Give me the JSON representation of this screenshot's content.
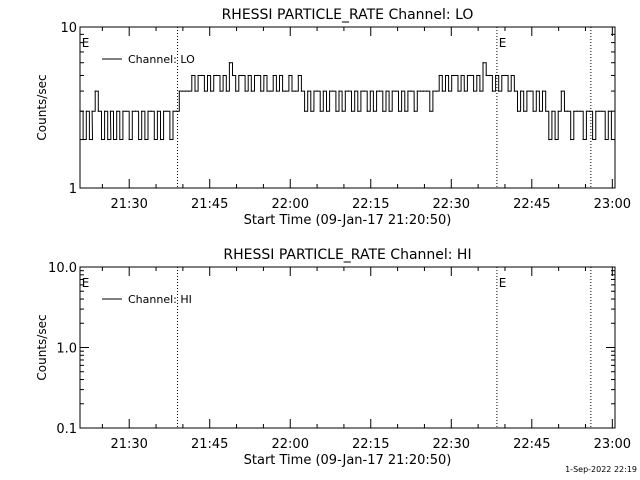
{
  "footer_date": "1-Sep-2022 22:19",
  "chart_data": [
    {
      "type": "line",
      "title": "RHESSI PARTICLE_RATE Channel: LO",
      "xlabel": "Start Time (09-Jan-17 21:20:50)",
      "ylabel": "Counts/sec",
      "yscale": "log",
      "ylim": [
        1,
        10
      ],
      "y_ticks": [
        1,
        10
      ],
      "y_tick_labels": [
        "1",
        "10"
      ],
      "xlim": [
        "21:20:50",
        "23:00:30"
      ],
      "x_ticks": [
        "21:30",
        "21:45",
        "22:00",
        "22:15",
        "22:30",
        "22:45",
        "23:00"
      ],
      "x_tick_labels": [
        "21:30",
        "21:45",
        "22:00",
        "22:15",
        "22:30",
        "22:45",
        "23:00"
      ],
      "legend": "Channel: LO",
      "legend_placement": "top-left",
      "event_lines": [
        "21:39:00",
        "22:38:30",
        "22:56:00"
      ],
      "event_markers": [
        {
          "time": "21:21:10",
          "label": "E"
        },
        {
          "time": "22:38:50",
          "label": "E"
        }
      ],
      "series": [
        {
          "name": "Channel: LO",
          "x": [
            "21:20:50",
            "21:21:25",
            "21:22:00",
            "21:22:35",
            "21:23:05",
            "21:23:40",
            "21:24:15",
            "21:24:50",
            "21:25:25",
            "21:26:00",
            "21:26:30",
            "21:27:05",
            "21:27:40",
            "21:28:15",
            "21:28:50",
            "21:29:25",
            "21:30:00",
            "21:30:35",
            "21:31:10",
            "21:31:45",
            "21:32:20",
            "21:32:55",
            "21:33:30",
            "21:34:05",
            "21:34:40",
            "21:35:15",
            "21:35:50",
            "21:36:25",
            "21:37:00",
            "21:37:35",
            "21:38:10",
            "21:38:45",
            "21:39:20",
            "21:39:55",
            "21:40:30",
            "21:41:05",
            "21:41:40",
            "21:42:15",
            "21:42:50",
            "21:43:25",
            "21:44:00",
            "21:44:35",
            "21:45:10",
            "21:45:45",
            "21:46:20",
            "21:46:55",
            "21:47:30",
            "21:48:05",
            "21:48:40",
            "21:49:15",
            "21:49:50",
            "21:50:25",
            "21:51:00",
            "21:51:35",
            "21:52:10",
            "21:52:45",
            "21:53:20",
            "21:53:55",
            "21:54:30",
            "21:55:05",
            "21:55:40",
            "21:56:15",
            "21:56:50",
            "21:57:25",
            "21:58:00",
            "21:58:35",
            "21:59:10",
            "21:59:45",
            "22:00:20",
            "22:00:55",
            "22:01:30",
            "22:02:05",
            "22:02:40",
            "22:03:15",
            "22:03:50",
            "22:04:25",
            "22:05:00",
            "22:05:35",
            "22:06:10",
            "22:06:45",
            "22:07:20",
            "22:07:55",
            "22:08:30",
            "22:09:05",
            "22:09:40",
            "22:10:15",
            "22:10:50",
            "22:11:25",
            "22:12:00",
            "22:12:35",
            "22:13:10",
            "22:13:45",
            "22:14:20",
            "22:14:55",
            "22:15:30",
            "22:16:05",
            "22:16:40",
            "22:17:15",
            "22:17:50",
            "22:18:25",
            "22:19:00",
            "22:19:35",
            "22:20:10",
            "22:20:45",
            "22:21:20",
            "22:21:55",
            "22:22:30",
            "22:23:05",
            "22:23:40",
            "22:24:15",
            "22:24:50",
            "22:25:25",
            "22:26:00",
            "22:26:35",
            "22:27:10",
            "22:27:45",
            "22:28:20",
            "22:28:55",
            "22:29:30",
            "22:30:05",
            "22:30:40",
            "22:31:15",
            "22:31:50",
            "22:32:25",
            "22:33:00",
            "22:33:35",
            "22:34:10",
            "22:34:45",
            "22:35:20",
            "22:35:55",
            "22:36:30",
            "22:37:05",
            "22:37:40",
            "22:38:15",
            "22:38:50",
            "22:39:25",
            "22:40:00",
            "22:40:35",
            "22:41:10",
            "22:41:45",
            "22:42:20",
            "22:42:55",
            "22:43:30",
            "22:44:05",
            "22:44:40",
            "22:45:15",
            "22:45:50",
            "22:46:25",
            "22:47:00",
            "22:47:35",
            "22:48:10",
            "22:48:45",
            "22:49:20",
            "22:49:55",
            "22:50:30",
            "22:51:05",
            "22:51:40",
            "22:52:15",
            "22:52:50",
            "22:53:25",
            "22:54:00",
            "22:54:35",
            "22:55:10",
            "22:55:45",
            "22:56:20",
            "22:56:55",
            "22:57:30",
            "22:58:05",
            "22:58:40",
            "22:59:15",
            "22:59:50"
          ],
          "y": [
            3,
            2,
            3,
            2,
            3,
            4,
            3,
            2,
            3,
            2,
            3,
            2,
            3,
            2,
            3,
            3,
            2,
            3,
            3,
            2,
            3,
            2,
            3,
            3,
            2,
            3,
            2,
            3,
            3,
            2,
            3,
            3,
            4,
            4,
            4,
            4,
            5,
            4,
            5,
            5,
            4,
            5,
            4,
            5,
            5,
            4,
            5,
            4,
            6,
            5,
            4,
            5,
            5,
            4,
            5,
            4,
            5,
            5,
            4,
            5,
            4,
            4,
            5,
            4,
            5,
            4,
            4,
            5,
            4,
            4,
            5,
            4,
            3,
            4,
            3,
            4,
            4,
            3,
            4,
            3,
            4,
            4,
            3,
            4,
            3,
            4,
            4,
            3,
            4,
            3,
            4,
            4,
            3,
            4,
            3,
            4,
            4,
            3,
            4,
            3,
            4,
            4,
            3,
            4,
            3,
            4,
            4,
            3,
            4,
            4,
            4,
            4,
            3,
            4,
            4,
            5,
            4,
            5,
            4,
            5,
            5,
            4,
            5,
            4,
            5,
            5,
            4,
            5,
            4,
            6,
            5,
            5,
            4,
            5,
            4,
            5,
            5,
            4,
            5,
            4,
            3,
            4,
            3,
            4,
            4,
            3,
            4,
            3,
            4,
            3,
            2,
            3,
            2,
            3,
            4,
            3,
            3,
            2,
            3,
            3,
            3,
            2,
            3,
            3,
            2,
            3,
            3,
            3,
            2,
            3,
            2
          ]
        }
      ]
    },
    {
      "type": "line",
      "title": "RHESSI PARTICLE_RATE Channel: HI",
      "xlabel": "Start Time (09-Jan-17 21:20:50)",
      "ylabel": "Counts/sec",
      "yscale": "log",
      "ylim": [
        0.1,
        10
      ],
      "y_ticks": [
        0.1,
        1,
        10
      ],
      "y_tick_labels": [
        "0.1",
        "1.0",
        "10.0"
      ],
      "xlim": [
        "21:20:50",
        "23:00:30"
      ],
      "x_ticks": [
        "21:30",
        "21:45",
        "22:00",
        "22:15",
        "22:30",
        "22:45",
        "23:00"
      ],
      "x_tick_labels": [
        "21:30",
        "21:45",
        "22:00",
        "22:15",
        "22:30",
        "22:45",
        "23:00"
      ],
      "legend": "Channel: HI",
      "legend_placement": "top-left",
      "event_lines": [
        "21:39:00",
        "22:38:30",
        "22:56:00"
      ],
      "event_markers": [
        {
          "time": "21:21:10",
          "label": "E"
        },
        {
          "time": "22:38:50",
          "label": "E"
        }
      ],
      "series": [
        {
          "name": "Channel: HI",
          "x": [],
          "y": []
        }
      ]
    }
  ]
}
